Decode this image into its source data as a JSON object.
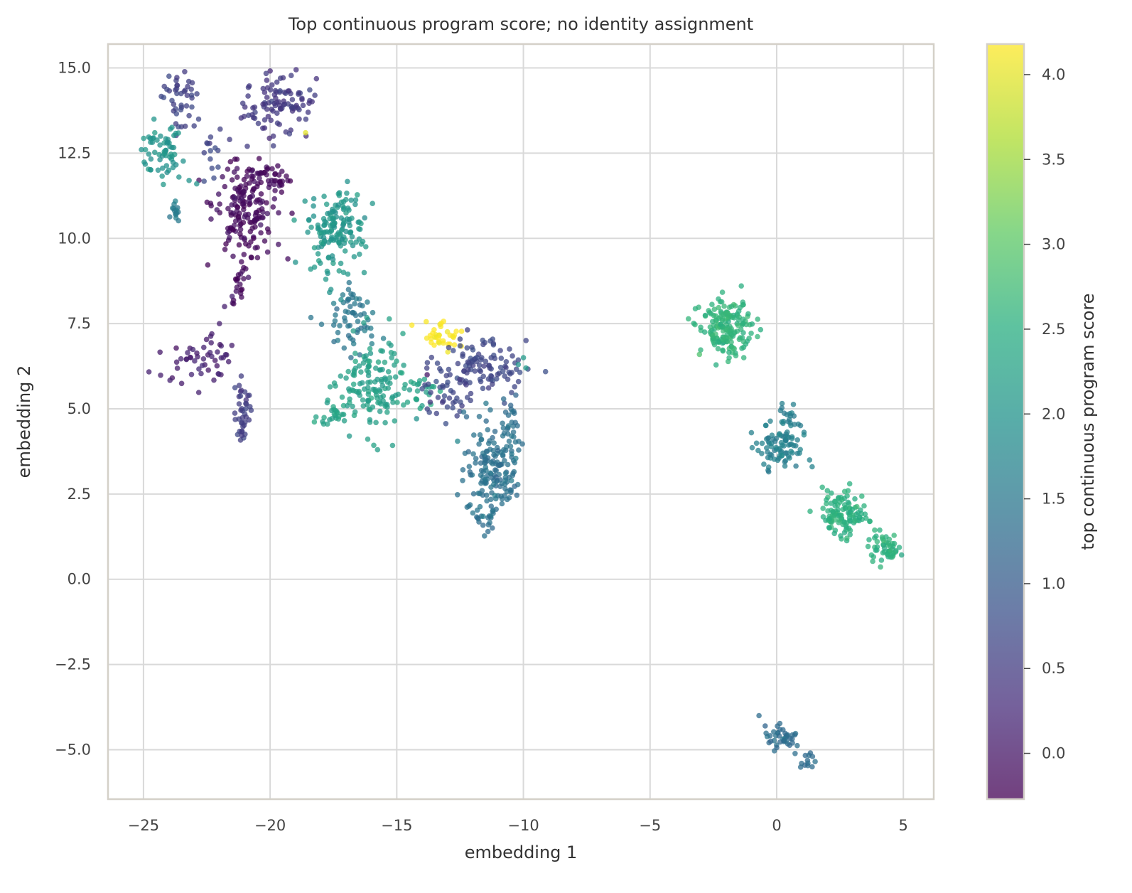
{
  "chart_data": {
    "type": "scatter",
    "title": "Top continuous program score; no identity assignment",
    "xlabel": "embedding 1",
    "ylabel": "embedding 2",
    "xlim": [
      -26.4,
      6.2
    ],
    "ylim": [
      -6.45,
      15.7
    ],
    "xticks": [
      -25,
      -20,
      -15,
      -10,
      -5,
      0,
      5
    ],
    "xtick_labels": [
      "−25",
      "−20",
      "−15",
      "−10",
      "−5",
      "0",
      "5"
    ],
    "yticks": [
      -5,
      -2.5,
      0,
      2.5,
      5,
      7.5,
      10,
      12.5,
      15
    ],
    "ytick_labels": [
      "−5.0",
      "−2.5",
      "0.0",
      "2.5",
      "5.0",
      "7.5",
      "10.0",
      "12.5",
      "15.0"
    ],
    "grid": true,
    "colorbar": {
      "label": "top continuous program score",
      "range": [
        -0.27,
        4.18
      ],
      "ticks": [
        0.0,
        0.5,
        1.0,
        1.5,
        2.0,
        2.5,
        3.0,
        3.5,
        4.0
      ],
      "tick_labels": [
        "0.0",
        "0.5",
        "1.0",
        "1.5",
        "2.0",
        "2.5",
        "3.0",
        "3.5",
        "4.0"
      ],
      "colormap": "viridis"
    },
    "point_opacity": 0.75,
    "clusters": [
      {
        "x": -23.6,
        "y": 14.2,
        "sx": 0.35,
        "sy": 0.45,
        "n": 40,
        "score": 0.6
      },
      {
        "x": -24.3,
        "y": 12.5,
        "sx": 0.45,
        "sy": 0.4,
        "n": 60,
        "score": 2.0
      },
      {
        "x": -23.7,
        "y": 10.8,
        "sx": 0.12,
        "sy": 0.2,
        "n": 14,
        "score": 1.6
      },
      {
        "x": -22.4,
        "y": 12.6,
        "sx": 0.2,
        "sy": 0.4,
        "n": 14,
        "score": 0.7
      },
      {
        "x": -19.6,
        "y": 13.9,
        "sx": 0.7,
        "sy": 0.45,
        "n": 100,
        "score": 0.45
      },
      {
        "x": -21.1,
        "y": 11.0,
        "sx": 0.6,
        "sy": 0.7,
        "n": 170,
        "score": -0.15
      },
      {
        "x": -19.7,
        "y": 11.7,
        "sx": 0.4,
        "sy": 0.2,
        "n": 30,
        "score": -0.15
      },
      {
        "x": -21.2,
        "y": 8.9,
        "sx": 0.2,
        "sy": 0.5,
        "n": 22,
        "score": -0.15
      },
      {
        "x": -22.8,
        "y": 6.5,
        "sx": 0.8,
        "sy": 0.35,
        "n": 50,
        "score": 0.1
      },
      {
        "x": -21.1,
        "y": 4.9,
        "sx": 0.15,
        "sy": 0.45,
        "n": 40,
        "score": 0.5
      },
      {
        "x": -17.4,
        "y": 10.3,
        "sx": 0.55,
        "sy": 0.6,
        "n": 150,
        "score": 2.05
      },
      {
        "x": -16.7,
        "y": 7.6,
        "sx": 0.45,
        "sy": 0.5,
        "n": 60,
        "score": 1.5
      },
      {
        "x": -15.9,
        "y": 5.6,
        "sx": 0.7,
        "sy": 0.7,
        "n": 140,
        "score": 2.2
      },
      {
        "x": -17.4,
        "y": 4.8,
        "sx": 0.35,
        "sy": 0.2,
        "n": 25,
        "score": 2.3
      },
      {
        "x": -14.2,
        "y": 5.5,
        "sx": 0.35,
        "sy": 0.25,
        "n": 20,
        "score": 2.3
      },
      {
        "x": -13.2,
        "y": 7.2,
        "sx": 0.4,
        "sy": 0.2,
        "n": 35,
        "score": 4.18
      },
      {
        "x": -11.7,
        "y": 6.2,
        "sx": 0.9,
        "sy": 0.4,
        "n": 110,
        "score": 0.65
      },
      {
        "x": -13.0,
        "y": 5.3,
        "sx": 0.5,
        "sy": 0.3,
        "n": 30,
        "score": 0.65
      },
      {
        "x": -11.2,
        "y": 3.3,
        "sx": 0.55,
        "sy": 0.75,
        "n": 150,
        "score": 1.4
      },
      {
        "x": -10.5,
        "y": 4.2,
        "sx": 0.2,
        "sy": 0.5,
        "n": 25,
        "score": 1.4
      },
      {
        "x": -11.4,
        "y": 1.9,
        "sx": 0.25,
        "sy": 0.3,
        "n": 20,
        "score": 1.4
      },
      {
        "x": -2.0,
        "y": 7.35,
        "sx": 0.5,
        "sy": 0.38,
        "n": 170,
        "score": 2.6
      },
      {
        "x": 0.05,
        "y": 3.9,
        "sx": 0.45,
        "sy": 0.35,
        "n": 80,
        "score": 1.65
      },
      {
        "x": 0.6,
        "y": 4.65,
        "sx": 0.2,
        "sy": 0.2,
        "n": 20,
        "score": 1.65
      },
      {
        "x": 2.7,
        "y": 1.9,
        "sx": 0.45,
        "sy": 0.35,
        "n": 110,
        "score": 2.55
      },
      {
        "x": 4.2,
        "y": 0.95,
        "sx": 0.3,
        "sy": 0.2,
        "n": 50,
        "score": 2.55
      },
      {
        "x": 0.2,
        "y": -4.6,
        "sx": 0.35,
        "sy": 0.18,
        "n": 40,
        "score": 1.3
      },
      {
        "x": 1.2,
        "y": -5.3,
        "sx": 0.2,
        "sy": 0.15,
        "n": 12,
        "score": 1.3
      }
    ],
    "points": [
      {
        "x": -18.6,
        "y": 13.1,
        "score": 4.0
      },
      {
        "x": -13.8,
        "y": 6.0,
        "score": 0.0
      },
      {
        "x": -12.6,
        "y": 4.05,
        "score": 1.8
      },
      {
        "x": -10.2,
        "y": 6.3,
        "score": 2.0
      },
      {
        "x": -10.0,
        "y": 6.5,
        "score": 2.1
      },
      {
        "x": -9.9,
        "y": 6.2,
        "score": 2.1
      },
      {
        "x": -18.4,
        "y": 9.1,
        "score": 2.1
      },
      {
        "x": -17.8,
        "y": 8.8,
        "score": 2.1
      },
      {
        "x": -17.1,
        "y": 9.0,
        "score": 2.1
      },
      {
        "x": -19.0,
        "y": 9.3,
        "score": 2.0
      },
      {
        "x": -19.3,
        "y": 9.4,
        "score": -0.1
      },
      {
        "x": -20.1,
        "y": 9.6,
        "score": -0.1
      },
      {
        "x": -17.6,
        "y": 8.5,
        "score": 2.0
      },
      {
        "x": -17.2,
        "y": 8.2,
        "score": 1.9
      },
      {
        "x": -23.2,
        "y": 11.7,
        "score": 2.0
      },
      {
        "x": -22.9,
        "y": 11.6,
        "score": 2.0
      },
      {
        "x": -23.6,
        "y": 11.8,
        "score": 2.0
      },
      {
        "x": -24.0,
        "y": 12.0,
        "score": 2.0
      },
      {
        "x": -22.0,
        "y": 7.5,
        "score": 0.1
      },
      {
        "x": -21.8,
        "y": 8.0,
        "score": 0.1
      },
      {
        "x": -21.5,
        "y": 8.3,
        "score": 0.1
      },
      {
        "x": -22.3,
        "y": 7.2,
        "score": 0.1
      },
      {
        "x": -23.2,
        "y": 13.6,
        "score": 0.6
      },
      {
        "x": -23.0,
        "y": 13.3,
        "score": 0.6
      },
      {
        "x": -21.6,
        "y": 12.9,
        "score": 0.5
      },
      {
        "x": -20.9,
        "y": 12.7,
        "score": 0.5
      },
      {
        "x": -18.7,
        "y": 13.9,
        "score": 0.45
      },
      {
        "x": -18.5,
        "y": 13.7,
        "score": 0.45
      },
      {
        "x": -15.2,
        "y": 6.5,
        "score": 2.2
      },
      {
        "x": -14.7,
        "y": 5.6,
        "score": 2.3
      },
      {
        "x": -11.4,
        "y": 1.4,
        "score": 1.3
      },
      {
        "x": -10.7,
        "y": 4.9,
        "score": 1.3
      },
      {
        "x": -10.5,
        "y": 5.1,
        "score": 1.2
      },
      {
        "x": -10.3,
        "y": 5.4,
        "score": 1.2
      },
      {
        "x": -11.6,
        "y": 5.6,
        "score": 0.7
      },
      {
        "x": 1.3,
        "y": 3.5,
        "score": 1.7
      },
      {
        "x": 1.4,
        "y": 3.3,
        "score": 1.7
      },
      {
        "x": 0.9,
        "y": 3.7,
        "score": 1.7
      },
      {
        "x": -1.0,
        "y": 4.3,
        "score": 1.65
      },
      {
        "x": 1.8,
        "y": 2.7,
        "score": 2.55
      },
      {
        "x": 2.0,
        "y": 2.6,
        "score": 2.55
      },
      {
        "x": 4.6,
        "y": 0.75,
        "score": 2.55
      },
      {
        "x": 4.5,
        "y": 0.65,
        "score": 2.55
      },
      {
        "x": 1.4,
        "y": -5.5,
        "score": 1.3
      },
      {
        "x": -0.7,
        "y": -4.0,
        "score": 1.3
      },
      {
        "x": -1.3,
        "y": 6.5,
        "score": 2.6
      }
    ]
  }
}
